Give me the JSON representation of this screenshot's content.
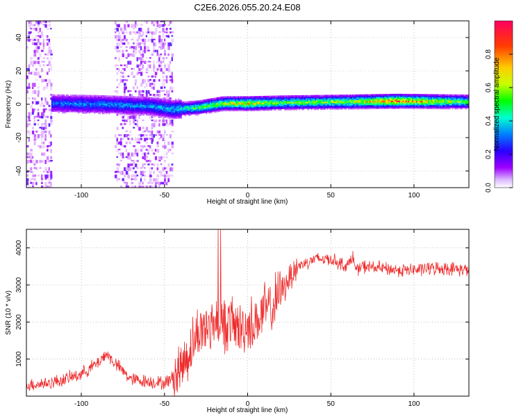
{
  "title": "C2E6.2026.055.20.24.E08",
  "colors": {
    "snr_line": "#ee2a2a",
    "axis": "#000000",
    "grid": "#9a9a9a"
  },
  "chart_data": [
    {
      "id": "spectrogram",
      "type": "heatmap",
      "xlabel": "Height of straight line (km)",
      "ylabel": "Frequency (Hz)",
      "xlim": [
        -133,
        133
      ],
      "ylim": [
        -50,
        50
      ],
      "xticks": [
        -100,
        -50,
        0,
        50,
        100
      ],
      "yticks": [
        -40,
        -20,
        0,
        20,
        40
      ],
      "grid": true,
      "colorbar": {
        "label": "Normalized spectral amplitude",
        "range": [
          0,
          1
        ],
        "ticks": [
          "0.0",
          "0.2",
          "0.4",
          "0.6",
          "0.8"
        ],
        "tick_values": [
          0.0,
          0.2,
          0.4,
          0.6,
          0.8
        ],
        "colormap": [
          "#ffffff",
          "#9d00ff",
          "#2a00ff",
          "#0080ff",
          "#00ffd0",
          "#00ff00",
          "#c8ff00",
          "#ffcc00",
          "#ff3b00",
          "#ff0060"
        ]
      },
      "ridge": {
        "description_points": [
          {
            "height_km": -117,
            "freq_hz": 0.5,
            "amplitude": 0.35
          },
          {
            "height_km": -90,
            "freq_hz": 0.0,
            "amplitude": 0.4
          },
          {
            "height_km": -60,
            "freq_hz": -1.0,
            "amplitude": 0.4
          },
          {
            "height_km": -45,
            "freq_hz": -3.0,
            "amplitude": 0.45
          },
          {
            "height_km": -30,
            "freq_hz": -2.0,
            "amplitude": 0.55
          },
          {
            "height_km": -15,
            "freq_hz": 0.5,
            "amplitude": 0.65
          },
          {
            "height_km": 0,
            "freq_hz": 0.5,
            "amplitude": 0.75
          },
          {
            "height_km": 20,
            "freq_hz": 1.0,
            "amplitude": 0.6
          },
          {
            "height_km": 60,
            "freq_hz": 1.5,
            "amplitude": 0.65
          },
          {
            "height_km": 90,
            "freq_hz": 2.0,
            "amplitude": 0.9
          },
          {
            "height_km": 133,
            "freq_hz": 1.5,
            "amplitude": 0.55
          }
        ],
        "noise_bands_km": [
          [
            -133,
            -118
          ],
          [
            -80,
            -45
          ]
        ]
      }
    },
    {
      "id": "snr",
      "type": "line",
      "xlabel": "Height of straight line (km)",
      "ylabel": "SNR (10 * v/v)",
      "xlim": [
        -133,
        133
      ],
      "ylim": [
        0,
        4500
      ],
      "xticks": [
        -100,
        -50,
        0,
        50,
        100
      ],
      "yticks": [
        1000,
        2000,
        3000,
        4000
      ],
      "grid": true,
      "series": [
        {
          "name": "SNR",
          "x": [
            -133,
            -120,
            -110,
            -100,
            -90,
            -85,
            -80,
            -70,
            -60,
            -50,
            -45,
            -40,
            -35,
            -30,
            -25,
            -20,
            -15,
            -10,
            -5,
            0,
            5,
            10,
            15,
            20,
            25,
            30,
            40,
            50,
            60,
            63,
            65,
            70,
            80,
            90,
            100,
            110,
            120,
            133
          ],
          "y": [
            300,
            350,
            450,
            600,
            900,
            1150,
            900,
            450,
            400,
            350,
            500,
            800,
            1200,
            1700,
            1900,
            2000,
            1900,
            2000,
            1800,
            1900,
            2000,
            2300,
            2400,
            2800,
            3200,
            3500,
            3700,
            3700,
            3500,
            3800,
            3400,
            3500,
            3450,
            3400,
            3400,
            3450,
            3450,
            3400
          ]
        }
      ]
    }
  ]
}
